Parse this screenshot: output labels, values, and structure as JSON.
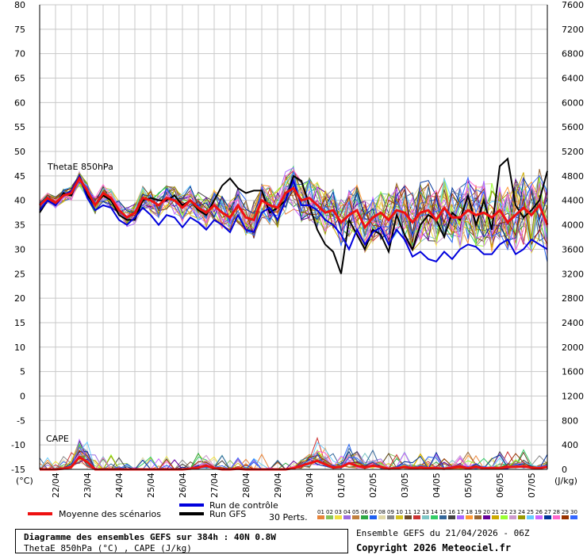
{
  "chart_data": {
    "type": "line",
    "title": "Diagramme des ensembles GEFS sur 384h : 40N 0.8W",
    "subtitle": "ThetaE 850hPa (°C) , CAPE (J/kg)",
    "panel_labels": {
      "thetae": "ThetaE 850hPa",
      "cape": "CAPE"
    },
    "left_axis": {
      "unit": "(°C)",
      "ticks": [
        80,
        75,
        70,
        65,
        60,
        55,
        50,
        45,
        40,
        35,
        30,
        25,
        20,
        15,
        10,
        5,
        0,
        -5,
        -10,
        -15
      ],
      "ylim": [
        -15,
        80
      ]
    },
    "right_axis": {
      "unit": "(J/kg)",
      "ticks": [
        7600,
        7200,
        6800,
        6400,
        6000,
        5600,
        5200,
        4800,
        4400,
        4000,
        3600,
        3200,
        2800,
        2400,
        2000,
        1600,
        1200,
        800,
        400,
        0
      ],
      "ylim": [
        0,
        7600
      ]
    },
    "x_categories": [
      "22/04",
      "23/04",
      "24/04",
      "25/04",
      "26/04",
      "27/04",
      "28/04",
      "29/04",
      "30/04",
      "01/05",
      "02/05",
      "03/05",
      "04/05",
      "05/05",
      "06/05",
      "07/05"
    ],
    "grid": true,
    "step_hours": 6,
    "series": [
      {
        "name": "Moyenne des scénarios",
        "color": "#ee1111",
        "thetae": [
          39,
          40.5,
          39.5,
          41,
          41.5,
          44.5,
          42,
          39,
          41.5,
          40.5,
          38,
          36.5,
          37.5,
          40.5,
          40,
          39,
          40.5,
          40,
          38.5,
          40,
          38.5,
          37.5,
          39,
          37.5,
          36.5,
          39,
          36.5,
          36,
          40,
          39,
          38.5,
          41.5,
          42.5,
          40,
          40.5,
          39,
          37.5,
          38,
          35.5,
          37,
          38,
          34.5,
          36.5,
          37.5,
          36,
          38,
          37.5,
          35.5,
          37.5,
          38,
          36,
          38.5,
          36.5,
          36.5,
          38,
          37,
          37.5,
          36.5,
          38,
          35.5,
          37,
          38.5,
          37,
          39,
          35
        ]
      },
      {
        "name": "Run de contrôle",
        "color": "#0000dd",
        "thetae": [
          38,
          40,
          39,
          41,
          42,
          45,
          40.5,
          38,
          39,
          38.5,
          36,
          35,
          36.5,
          38.5,
          37,
          35,
          37,
          36.5,
          34.5,
          36.5,
          35.5,
          34,
          36,
          35,
          33.5,
          37,
          34,
          33.5,
          37.5,
          38.5,
          36,
          40,
          44,
          39,
          39,
          38,
          36,
          35,
          33,
          30,
          34,
          31,
          33.5,
          34.5,
          31,
          34,
          32,
          28.5,
          29.5,
          28,
          27.5,
          29.5,
          28,
          30,
          31,
          30.5,
          29,
          29,
          31,
          32,
          29,
          30,
          32,
          31,
          30
        ]
      },
      {
        "name": "Run GFS",
        "color": "#000000",
        "thetae": [
          37.5,
          40,
          39,
          41.5,
          41,
          45,
          41,
          39,
          41,
          40,
          37,
          36,
          36,
          40,
          40.5,
          40,
          40,
          41,
          39,
          40,
          38,
          37,
          40,
          43,
          44.5,
          42.5,
          41.5,
          42,
          42,
          37.5,
          38.5,
          40,
          45,
          44,
          39,
          34,
          31,
          29.5,
          25,
          36,
          33,
          30,
          34,
          33,
          29.5,
          37,
          33,
          30,
          35,
          37,
          36,
          32.5,
          37.5,
          36,
          41,
          35,
          40,
          34,
          47,
          48.5,
          39,
          36.5,
          38,
          40,
          46
        ]
      }
    ],
    "cape_mean": [
      0,
      0,
      0,
      10,
      40,
      200,
      120,
      0,
      0,
      0,
      0,
      0,
      0,
      0,
      0,
      0,
      0,
      0,
      0,
      10,
      30,
      60,
      20,
      0,
      0,
      10,
      0,
      0,
      0,
      0,
      0,
      0,
      20,
      60,
      100,
      140,
      80,
      30,
      40,
      100,
      60,
      30,
      60,
      40,
      10,
      20,
      40,
      20,
      30,
      20,
      20,
      10,
      30,
      40,
      20,
      40,
      20,
      20,
      20,
      40,
      40,
      50,
      30,
      20,
      40
    ]
  },
  "legend": {
    "mean_label": "Moyenne des scénarios",
    "control_label": "Run de contrôle",
    "gfs_label": "Run GFS",
    "perts_label": "30 Perts.",
    "pert_numbers": [
      "01",
      "02",
      "03",
      "04",
      "05",
      "06",
      "07",
      "08",
      "09",
      "10",
      "11",
      "12",
      "13",
      "14",
      "15",
      "16",
      "17",
      "18",
      "19",
      "20",
      "21",
      "22",
      "23",
      "24",
      "25",
      "26",
      "27",
      "28",
      "29",
      "30"
    ],
    "pert_colors": [
      "#e8843a",
      "#87c35a",
      "#f0e040",
      "#9c6be0",
      "#c08040",
      "#2ea846",
      "#2060f0",
      "#e0d8a8",
      "#888888",
      "#d4c21e",
      "#6b4a2a",
      "#cc3333",
      "#7ec6c6",
      "#33cc66",
      "#336699",
      "#444444",
      "#aa66ff",
      "#ff9933",
      "#996633",
      "#660099",
      "#ccaa00",
      "#99ff33",
      "#cc99cc",
      "#999900",
      "#66ccff",
      "#cc66ff",
      "#003399",
      "#ff66cc",
      "#993300",
      "#3366ff"
    ]
  },
  "footer": {
    "title": "Diagramme des ensembles GEFS sur 384h : 40N 0.8W",
    "subtitle": "ThetaE 850hPa (°C) , CAPE (J/kg)",
    "ensemble_label": "Ensemble GEFS du 21/04/2026 - 06Z",
    "copyright": "Copyright 2026 Meteociel.fr"
  }
}
